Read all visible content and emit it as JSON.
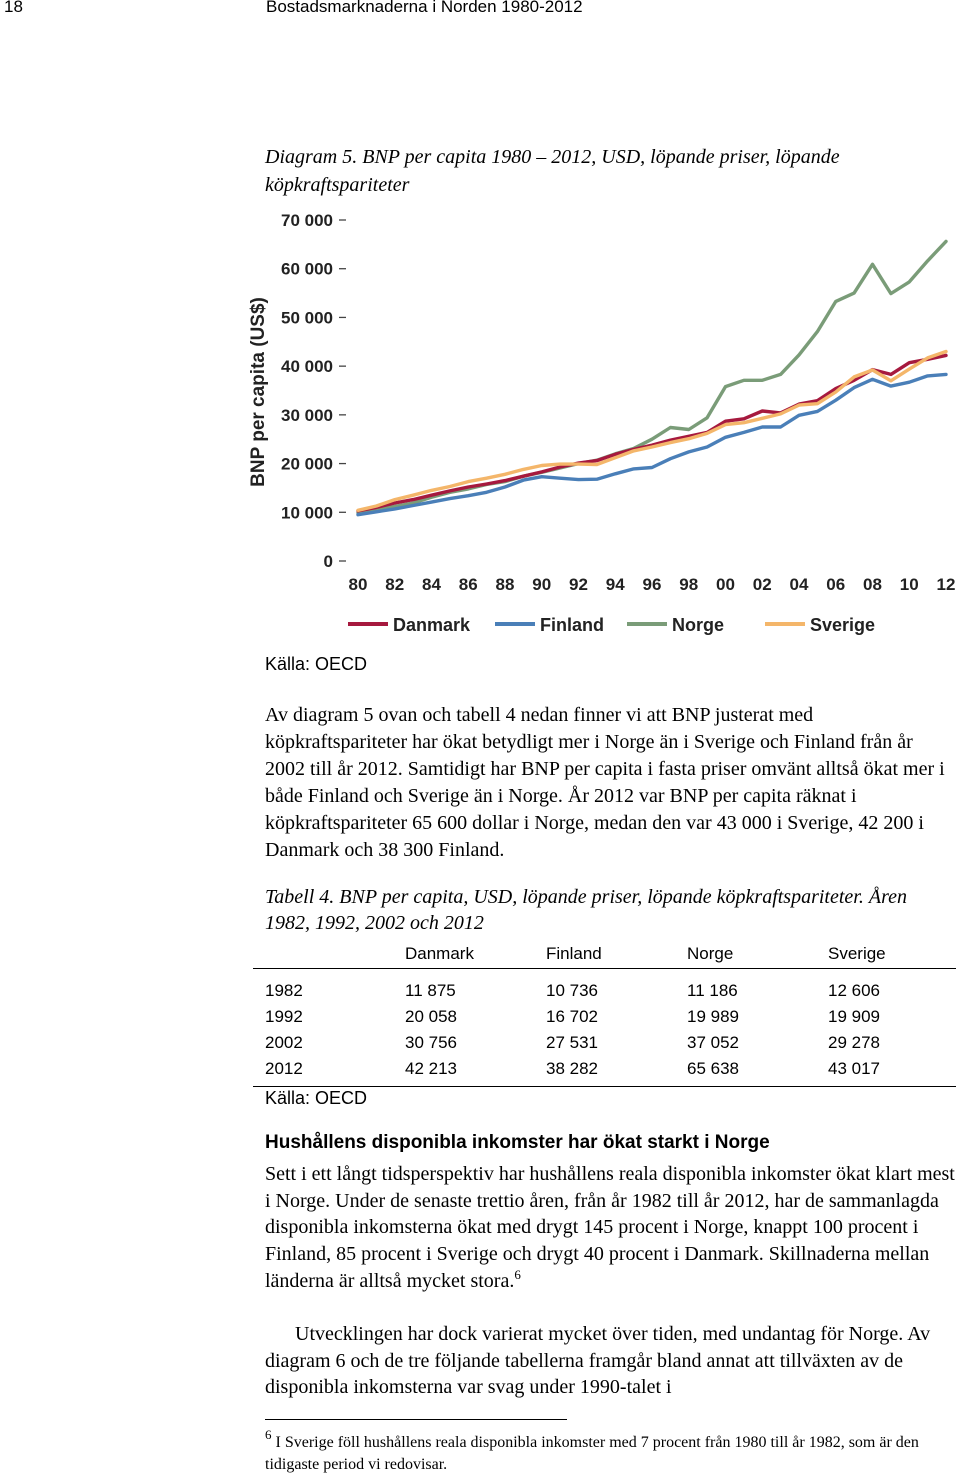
{
  "header": {
    "page_number": "18",
    "running_title": "Bostadsmarknaderna i Norden 1980-2012"
  },
  "diagram": {
    "caption": "Diagram 5. BNP per capita 1980 – 2012, USD, löpande priser, löpande köpkraftspariteter",
    "source": "Källa: OECD"
  },
  "chart_data": {
    "type": "line",
    "title": "",
    "ylabel": "BNP per capita (US$)",
    "xlabel": "",
    "ylim": [
      0,
      70000
    ],
    "yticks": [
      0,
      10000,
      20000,
      30000,
      40000,
      50000,
      60000,
      70000
    ],
    "ytick_labels": [
      "0",
      "10 000",
      "20 000",
      "30 000",
      "40 000",
      "50 000",
      "60 000",
      "70 000"
    ],
    "x": [
      1980,
      1981,
      1982,
      1983,
      1984,
      1985,
      1986,
      1987,
      1988,
      1989,
      1990,
      1991,
      1992,
      1993,
      1994,
      1995,
      1996,
      1997,
      1998,
      1999,
      2000,
      2001,
      2002,
      2003,
      2004,
      2005,
      2006,
      2007,
      2008,
      2009,
      2010,
      2011,
      2012
    ],
    "xtick_labels": [
      "80",
      "82",
      "84",
      "86",
      "88",
      "90",
      "92",
      "94",
      "96",
      "98",
      "00",
      "02",
      "04",
      "06",
      "08",
      "10",
      "12"
    ],
    "grid": false,
    "legend_position": "bottom",
    "colors": {
      "Danmark": "#a6193e",
      "Finland": "#4a7fb8",
      "Norge": "#7a9c78",
      "Sverige": "#f4b66a"
    },
    "series": [
      {
        "name": "Danmark",
        "values": [
          10300,
          11000,
          11900,
          12600,
          13500,
          14400,
          15200,
          15800,
          16500,
          17400,
          18300,
          19300,
          20100,
          20600,
          21900,
          22900,
          23800,
          24800,
          25600,
          26400,
          28700,
          29200,
          30800,
          30400,
          32200,
          32900,
          35400,
          37100,
          39300,
          38300,
          40700,
          41400,
          42200
        ]
      },
      {
        "name": "Finland",
        "values": [
          9500,
          10100,
          10700,
          11400,
          12100,
          12800,
          13400,
          14100,
          15200,
          16600,
          17300,
          17000,
          16700,
          16800,
          17900,
          18900,
          19200,
          21000,
          22400,
          23400,
          25400,
          26400,
          27500,
          27500,
          29900,
          30700,
          33000,
          35600,
          37300,
          35900,
          36700,
          38000,
          38300
        ]
      },
      {
        "name": "Norge",
        "values": [
          9900,
          10600,
          11200,
          11900,
          13100,
          14100,
          14800,
          15700,
          16300,
          17400,
          18200,
          19100,
          20000,
          20700,
          22000,
          23100,
          25000,
          27400,
          27000,
          29400,
          35800,
          37100,
          37100,
          38300,
          42300,
          47100,
          53300,
          55000,
          60900,
          54900,
          57300,
          61600,
          65600
        ]
      },
      {
        "name": "Sverige",
        "values": [
          10400,
          11300,
          12600,
          13500,
          14500,
          15300,
          16300,
          17000,
          17800,
          18800,
          19600,
          19900,
          19900,
          19800,
          21200,
          22600,
          23400,
          24300,
          25100,
          26200,
          28000,
          28400,
          29300,
          30200,
          32000,
          32300,
          34700,
          37800,
          39200,
          37000,
          39400,
          41700,
          43000
        ]
      }
    ]
  },
  "paragraph_1": "Av diagram 5 ovan och tabell 4 nedan finner vi att BNP justerat med köpkraftspariteter har ökat betydligt mer i Norge än i Sverige och Finland från år 2002 till år 2012. Samtidigt har BNP per capita i fasta priser omvänt alltså ökat mer i både Finland och Sverige än i Norge. År 2012 var BNP per capita räknat i köpkraftspariteter 65 600 dollar i Norge, medan den var 43 000 i Sverige, 42 200 i Danmark och 38 300 Finland.",
  "table": {
    "caption": "Tabell 4. BNP per capita, USD, löpande priser, löpande köpkraftspariteter. Åren 1982, 1992, 2002 och 2012",
    "headers": [
      "",
      "Danmark",
      "Finland",
      "Norge",
      "Sverige"
    ],
    "rows": [
      [
        "1982",
        "11 875",
        "10 736",
        "11 186",
        "12 606"
      ],
      [
        "1992",
        "20 058",
        "16 702",
        "19 989",
        "19 909"
      ],
      [
        "2002",
        "30 756",
        "27 531",
        "37 052",
        "29 278"
      ],
      [
        "2012",
        "42 213",
        "38 282",
        "65 638",
        "43 017"
      ]
    ],
    "source": "Källa: OECD"
  },
  "section": {
    "heading": "Hushållens disponibla inkomster har ökat starkt i Norge",
    "paragraph_2": "Sett i ett långt tidsperspektiv har hushållens reala disponibla inkomster ökat klart mest i Norge. Under de senaste trettio åren, från år 1982 till år 2012, har de sammanlagda disponibla inkomsterna ökat med drygt 145 procent i Norge, knappt 100 procent i Finland, 85 procent i Sverige och drygt 40 procent i Danmark. Skillnaderna mellan länderna är alltså mycket stora.",
    "paragraph_2_footnote_ref": "6",
    "paragraph_3": "Utvecklingen har dock varierat mycket över tiden, med undantag för Norge. Av diagram 6 och de tre följande tabellerna framgår bland annat att tillväxten av de disponibla inkomsterna var svag under 1990-talet i"
  },
  "footnote": {
    "number": "6",
    "text": " I Sverige föll hushållens reala disponibla inkomster med 7 procent från 1980 till år 1982, som är den tidigaste period vi redovisar."
  }
}
